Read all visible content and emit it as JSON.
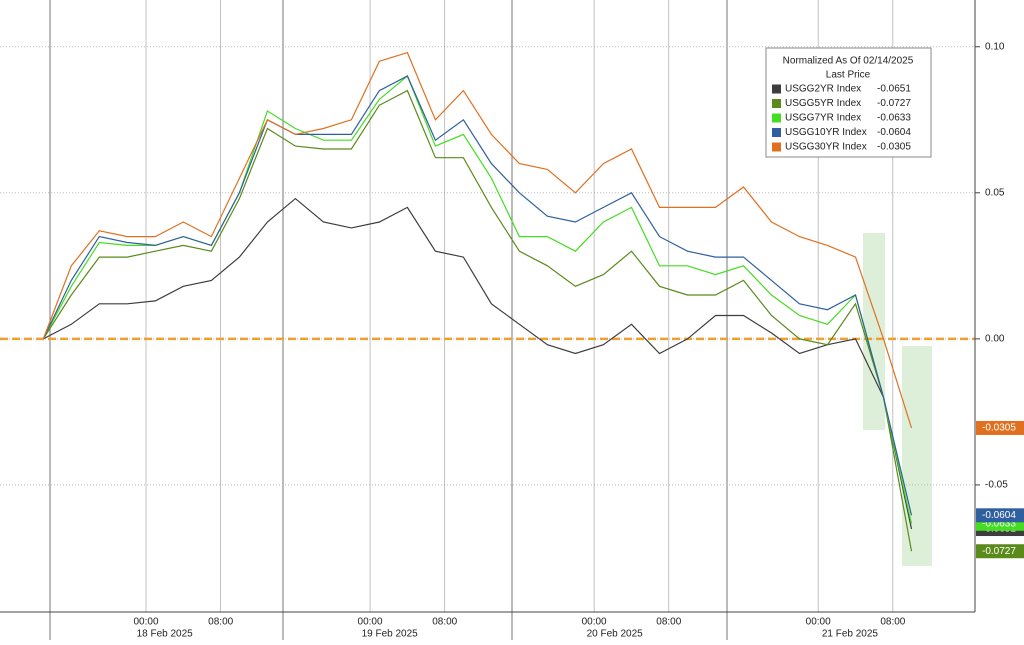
{
  "chart_data": {
    "type": "line",
    "legend_title": "Normalized As Of 02/14/2025",
    "legend_subtitle": "Last Price",
    "x": [
      13,
      16,
      19,
      22,
      25,
      28,
      31,
      34,
      37,
      40,
      43,
      46,
      49,
      52,
      55,
      58,
      61,
      64,
      67,
      70,
      73,
      76,
      79,
      82,
      85,
      88,
      91,
      94,
      97,
      100,
      103,
      106
    ],
    "xlim": [
      8.36,
      112.8
    ],
    "xticks": [
      {
        "value": 24,
        "label": "00:00"
      },
      {
        "value": 32,
        "label": "08:00"
      },
      {
        "value": 48,
        "label": "00:00"
      },
      {
        "value": 56,
        "label": "08:00"
      },
      {
        "value": 72,
        "label": "00:00"
      },
      {
        "value": 80,
        "label": "08:00"
      },
      {
        "value": 96,
        "label": "00:00"
      },
      {
        "value": 104,
        "label": "08:00"
      }
    ],
    "date_labels": [
      {
        "value": 26,
        "label": "18 Feb 2025"
      },
      {
        "value": 50.1,
        "label": "19 Feb 2025"
      },
      {
        "value": 74.2,
        "label": "20 Feb 2025"
      },
      {
        "value": 99.4,
        "label": "21 Feb 2025"
      }
    ],
    "ylim": [
      -0.0935,
      0.116
    ],
    "yticks": [
      {
        "value": 0.1,
        "label": "0.10"
      },
      0.05,
      {
        "value": 0,
        "label": "0.00"
      },
      -0.05
    ],
    "zero_line": true,
    "series": [
      {
        "name": "USGG2YR Index",
        "color": "#3d3d3d",
        "values": [
          0,
          0.005,
          0.012,
          0.012,
          0.013,
          0.018,
          0.02,
          0.028,
          0.04,
          0.048,
          0.04,
          0.038,
          0.04,
          0.045,
          0.03,
          0.028,
          0.012,
          0.005,
          -0.002,
          -0.005,
          -0.002,
          0.005,
          -0.005,
          0,
          0.008,
          0.008,
          0.002,
          -0.005,
          -0.002,
          0,
          -0.02,
          -0.0651
        ]
      },
      {
        "name": "USGG5YR Index",
        "color": "#5a8a1a",
        "values": [
          0,
          0.015,
          0.028,
          0.028,
          0.03,
          0.032,
          0.03,
          0.048,
          0.072,
          0.066,
          0.065,
          0.065,
          0.08,
          0.085,
          0.062,
          0.062,
          0.045,
          0.03,
          0.025,
          0.018,
          0.022,
          0.03,
          0.018,
          0.015,
          0.015,
          0.02,
          0.008,
          0,
          -0.002,
          0.012,
          -0.02,
          -0.0727
        ]
      },
      {
        "name": "USGG7YR Index",
        "color": "#44dd22",
        "values": [
          0,
          0.018,
          0.033,
          0.032,
          0.032,
          0.035,
          0.032,
          0.05,
          0.078,
          0.072,
          0.068,
          0.068,
          0.082,
          0.09,
          0.066,
          0.07,
          0.055,
          0.035,
          0.035,
          0.03,
          0.04,
          0.045,
          0.025,
          0.025,
          0.022,
          0.025,
          0.015,
          0.008,
          0.005,
          0.015,
          -0.02,
          -0.0633
        ]
      },
      {
        "name": "USGG10YR Index",
        "color": "#2f5f9f",
        "values": [
          0,
          0.02,
          0.035,
          0.033,
          0.032,
          0.035,
          0.032,
          0.05,
          0.075,
          0.07,
          0.07,
          0.07,
          0.085,
          0.09,
          0.068,
          0.075,
          0.06,
          0.05,
          0.042,
          0.04,
          0.045,
          0.05,
          0.035,
          0.03,
          0.028,
          0.028,
          0.02,
          0.012,
          0.01,
          0.015,
          -0.02,
          -0.0604
        ]
      },
      {
        "name": "USGG30YR Index",
        "color": "#e07020",
        "values": [
          0,
          0.025,
          0.037,
          0.035,
          0.035,
          0.04,
          0.035,
          0.055,
          0.075,
          0.07,
          0.072,
          0.075,
          0.095,
          0.098,
          0.075,
          0.085,
          0.07,
          0.06,
          0.058,
          0.05,
          0.06,
          0.065,
          0.045,
          0.045,
          0.045,
          0.052,
          0.04,
          0.035,
          0.032,
          0.028,
          0,
          -0.0305
        ]
      }
    ]
  }
}
